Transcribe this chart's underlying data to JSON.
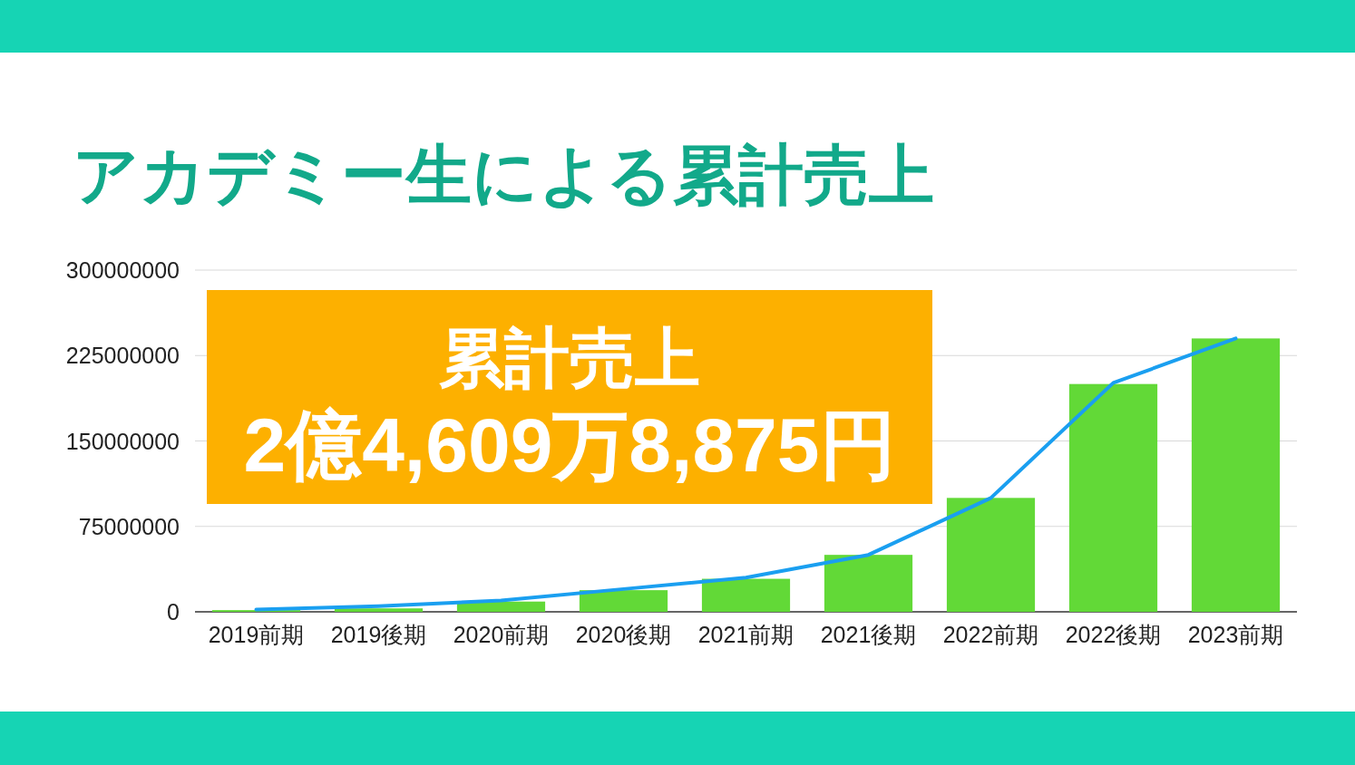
{
  "chart_data": {
    "type": "bar",
    "title": "アカデミー生による累計売上",
    "categories": [
      "2019前期",
      "2019後期",
      "2020前期",
      "2020後期",
      "2021前期",
      "2021後期",
      "2022前期",
      "2022後期",
      "2023前期"
    ],
    "series": [
      {
        "color": "#62d937",
        "values": [
          1500000,
          3000000,
          9000000,
          19000000,
          29000000,
          50000000,
          100000000,
          200000000,
          240000000
        ]
      },
      {
        "type": "line",
        "color": "#1a9ff0",
        "values": [
          2000000,
          5000000,
          10000000,
          20000000,
          30000000,
          50000000,
          100000000,
          201000000,
          240000000
        ]
      }
    ],
    "ylim": [
      0,
      300000000
    ],
    "yticks": [
      0,
      75000000,
      150000000,
      225000000,
      300000000
    ],
    "grid": "y",
    "annotations": [
      "累計売上",
      "2億4,609万8,875円"
    ]
  }
}
